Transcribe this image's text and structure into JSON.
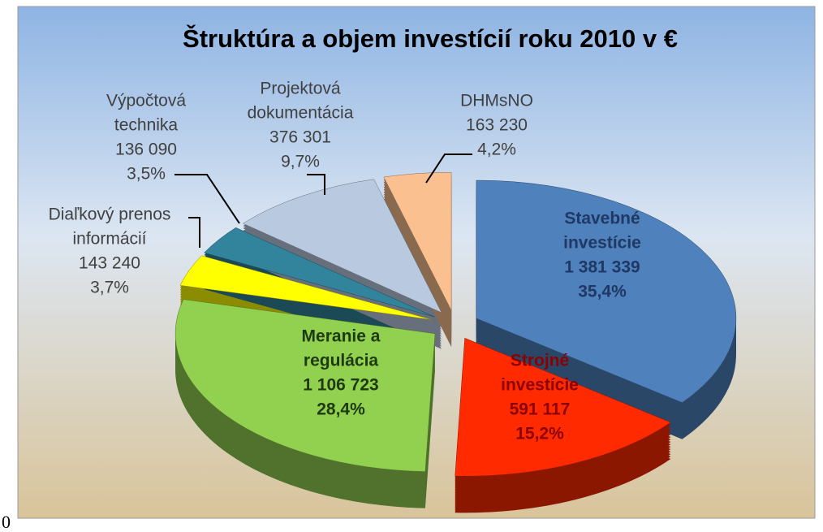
{
  "chart_data": {
    "type": "pie",
    "title": "Štruktúra a objem  investícií roku 2010 v €",
    "categories": [
      [
        "Stavebné",
        "investície"
      ],
      [
        "Strojné",
        "investície"
      ],
      [
        "Meranie a",
        "regulácia"
      ],
      [
        "Diaľkový prenos",
        "informácií"
      ],
      [
        "Výpočtová",
        "technika"
      ],
      [
        "Projektová",
        "dokumentácia"
      ],
      [
        "DHMsNO"
      ]
    ],
    "values": [
      1381339,
      591117,
      1106723,
      143240,
      136090,
      376301,
      163230
    ],
    "value_labels": [
      "1 381 339",
      "591 117",
      "1 106 723",
      "143 240",
      "136 090",
      "376 301",
      "163 230"
    ],
    "percentages": [
      35.4,
      15.2,
      28.4,
      3.7,
      3.5,
      9.7,
      4.2
    ],
    "percentage_labels": [
      "35,4%",
      "15,2%",
      "28,4%",
      "3,7%",
      "3,5%",
      "9,7%",
      "4,2%"
    ],
    "colors": [
      "#4f81bd",
      "#ff2a00",
      "#92d050",
      "#ffff00",
      "#31849b",
      "#b9c9e0",
      "#fac090"
    ],
    "label_colors": [
      "#1f3864",
      "#8b0000",
      "#1e3a10",
      "#404040",
      "#404040",
      "#404040",
      "#404040"
    ],
    "footnote": "0"
  }
}
